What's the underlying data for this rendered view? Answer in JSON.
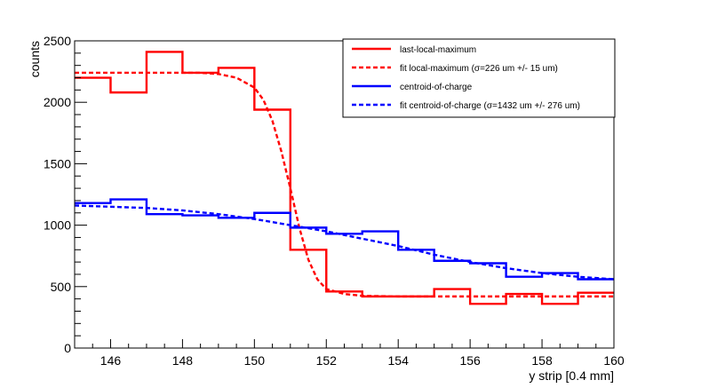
{
  "chart_data": {
    "type": "line",
    "xlabel": "y strip [0.4 mm]",
    "ylabel": "counts",
    "xlim": [
      145,
      160
    ],
    "ylim": [
      0,
      2500
    ],
    "x_ticks": [
      146,
      148,
      150,
      152,
      154,
      156,
      158,
      160
    ],
    "y_ticks": [
      0,
      500,
      1000,
      1500,
      2000,
      2500
    ],
    "grid": false,
    "legend_position": "top-right",
    "legend": [
      {
        "label": "last-local-maximum",
        "color": "#ff0000",
        "dashed": false
      },
      {
        "label": "fit local-maximum (σ=226 um +/- 15 um)",
        "color": "#ff0000",
        "dashed": true
      },
      {
        "label": "centroid-of-charge",
        "color": "#0000ff",
        "dashed": false
      },
      {
        "label": "fit centroid-of-charge (σ=1432 um +/- 276 um)",
        "color": "#0000ff",
        "dashed": true
      }
    ],
    "series": [
      {
        "name": "last-local-maximum",
        "style": "step",
        "color": "#ff0000",
        "bin_edges": [
          145,
          146,
          147,
          148,
          149,
          150,
          151,
          152,
          153,
          154,
          155,
          156,
          157,
          158,
          159,
          160
        ],
        "values": [
          2200,
          2080,
          2410,
          2240,
          2280,
          1940,
          800,
          460,
          420,
          420,
          480,
          360,
          440,
          360,
          450
        ]
      },
      {
        "name": "fit local-maximum (σ=226 um +/- 15 um)",
        "style": "dashed",
        "color": "#ff0000",
        "x": [
          145,
          146,
          147,
          148,
          148.5,
          149,
          149.5,
          150,
          150.25,
          150.5,
          150.75,
          151,
          151.25,
          151.5,
          151.75,
          152,
          152.5,
          153,
          154,
          155,
          156,
          157,
          158,
          159,
          160
        ],
        "values": [
          2240,
          2240,
          2240,
          2240,
          2240,
          2230,
          2200,
          2120,
          2020,
          1850,
          1600,
          1300,
          980,
          720,
          560,
          480,
          440,
          425,
          420,
          420,
          420,
          420,
          420,
          420,
          420
        ]
      },
      {
        "name": "centroid-of-charge",
        "style": "step",
        "color": "#0000ff",
        "bin_edges": [
          145,
          146,
          147,
          148,
          149,
          150,
          151,
          152,
          153,
          154,
          155,
          156,
          157,
          158,
          159,
          160
        ],
        "values": [
          1180,
          1210,
          1090,
          1080,
          1060,
          1100,
          980,
          930,
          950,
          800,
          710,
          690,
          580,
          610,
          560
        ]
      },
      {
        "name": "fit centroid-of-charge (σ=1432 um +/- 276 um)",
        "style": "dashed",
        "color": "#0000ff",
        "x": [
          145,
          146,
          147,
          148,
          149,
          150,
          151,
          152,
          153,
          154,
          155,
          156,
          157,
          158,
          159,
          160
        ],
        "values": [
          1160,
          1150,
          1140,
          1120,
          1090,
          1050,
          1000,
          950,
          890,
          830,
          760,
          700,
          650,
          610,
          580,
          560
        ]
      }
    ]
  }
}
